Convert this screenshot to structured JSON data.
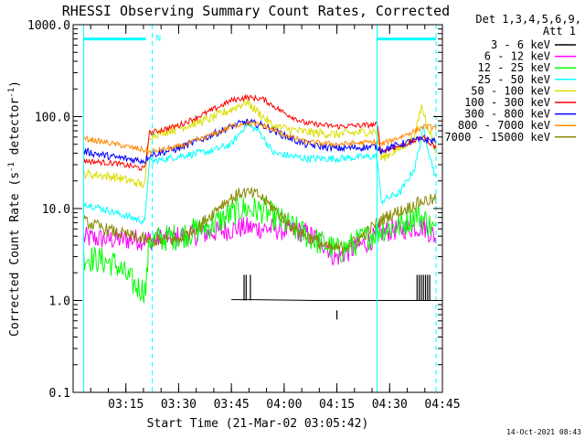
{
  "chart_data": {
    "type": "line",
    "title": "RHESSI Observing Summary Count Rates, Corrected",
    "xlabel": "Start Time (21-Mar-02 03:05:42)",
    "ylabel_main": "Corrected Count Rate (s",
    "ylabel_sup1": "-1",
    "ylabel_mid": " detector",
    "ylabel_sup2": "-1",
    "ylabel_end": ")",
    "yscale": "log",
    "ylim": [
      0.1,
      1000
    ],
    "xlim": [
      3.0,
      4.75
    ],
    "grid": false,
    "legend_position": "top-right",
    "footer_date": "14-Oct-2021 08:43",
    "legend_header": [
      "Det 1,3,4,5,6,9,",
      "Att 1"
    ],
    "yticks": [
      {
        "v": 1000,
        "label": "1000.0"
      },
      {
        "v": 100,
        "label": "100.0"
      },
      {
        "v": 10,
        "label": "10.0"
      },
      {
        "v": 1,
        "label": "1.0"
      },
      {
        "v": 0.1,
        "label": "0.1"
      }
    ],
    "xticks": [
      {
        "v": 3.25,
        "label": "03:15"
      },
      {
        "v": 3.5,
        "label": "03:30"
      },
      {
        "v": 3.75,
        "label": "03:45"
      },
      {
        "v": 4.0,
        "label": "04:00"
      },
      {
        "v": 4.25,
        "label": "04:15"
      },
      {
        "v": 4.5,
        "label": "04:30"
      },
      {
        "v": 4.75,
        "label": "04:45"
      }
    ],
    "annotation_flag": "N",
    "night_lines": [
      3.375,
      4.72
    ],
    "solid_lines": [
      3.05,
      4.44
    ],
    "att_bar": {
      "y": 700,
      "segments": [
        [
          3.05,
          3.345
        ],
        [
          4.44,
          4.72
        ]
      ]
    },
    "series": [
      {
        "name": "3 - 6 keV",
        "color": "#000000",
        "points": [
          [
            3.75,
            1.02
          ],
          [
            3.85,
            1.02
          ],
          [
            4.15,
            1.0
          ],
          [
            4.6,
            1.0
          ],
          [
            4.71,
            1.0
          ]
        ],
        "spikes": [
          [
            3.81,
            1.0,
            1.9
          ],
          [
            3.82,
            1.0,
            1.9
          ],
          [
            3.84,
            1.0,
            1.9
          ],
          [
            4.25,
            0.62,
            0.78
          ],
          [
            4.63,
            1.0,
            1.9
          ],
          [
            4.64,
            1.0,
            1.9
          ],
          [
            4.65,
            1.0,
            1.9
          ],
          [
            4.66,
            1.0,
            1.9
          ],
          [
            4.67,
            1.0,
            1.9
          ],
          [
            4.68,
            1.0,
            1.9
          ],
          [
            4.69,
            1.0,
            1.9
          ]
        ]
      },
      {
        "name": "6 - 12 keV",
        "color": "#ff00ff",
        "points": [
          [
            3.05,
            4.8
          ],
          [
            3.2,
            4.6
          ],
          [
            3.34,
            4.6
          ],
          [
            3.36,
            4.6
          ],
          [
            3.6,
            5.2
          ],
          [
            3.8,
            6.2
          ],
          [
            3.95,
            6.0
          ],
          [
            4.1,
            5.5
          ],
          [
            4.2,
            4.0
          ],
          [
            4.24,
            2.9
          ],
          [
            4.4,
            4.4
          ],
          [
            4.47,
            5.6
          ],
          [
            4.6,
            6.2
          ],
          [
            4.66,
            6.4
          ],
          [
            4.72,
            4.8
          ]
        ],
        "noise": 0.12
      },
      {
        "name": "12 - 25 keV",
        "color": "#00ff00",
        "points": [
          [
            3.05,
            3.0
          ],
          [
            3.2,
            2.5
          ],
          [
            3.3,
            1.4
          ],
          [
            3.345,
            1.3
          ],
          [
            3.36,
            4.5
          ],
          [
            3.5,
            5.0
          ],
          [
            3.65,
            6.5
          ],
          [
            3.8,
            10.0
          ],
          [
            3.9,
            9.5
          ],
          [
            4.05,
            6.0
          ],
          [
            4.15,
            4.5
          ],
          [
            4.2,
            4.0
          ],
          [
            4.26,
            3.4
          ],
          [
            4.4,
            5.0
          ],
          [
            4.47,
            6.0
          ],
          [
            4.55,
            6.5
          ],
          [
            4.63,
            8.8
          ],
          [
            4.68,
            7.0
          ],
          [
            4.72,
            5.5
          ]
        ],
        "noise": 0.15
      },
      {
        "name": "25 - 50 keV",
        "color": "#00ffff",
        "points": [
          [
            3.05,
            11.5
          ],
          [
            3.2,
            9.0
          ],
          [
            3.34,
            7.2
          ],
          [
            3.36,
            32
          ],
          [
            3.5,
            37
          ],
          [
            3.65,
            42
          ],
          [
            3.75,
            50
          ],
          [
            3.82,
            82
          ],
          [
            3.88,
            70
          ],
          [
            3.95,
            40
          ],
          [
            4.1,
            35
          ],
          [
            4.25,
            35
          ],
          [
            4.44,
            37
          ],
          [
            4.46,
            12
          ],
          [
            4.55,
            15
          ],
          [
            4.62,
            28
          ],
          [
            4.66,
            75
          ],
          [
            4.69,
            38
          ],
          [
            4.72,
            21
          ]
        ],
        "noise": 0.04
      },
      {
        "name": "50 - 100 keV",
        "color": "#dddd00",
        "points": [
          [
            3.05,
            24
          ],
          [
            3.2,
            22
          ],
          [
            3.34,
            18
          ],
          [
            3.36,
            62
          ],
          [
            3.5,
            75
          ],
          [
            3.65,
            95
          ],
          [
            3.75,
            120
          ],
          [
            3.82,
            145
          ],
          [
            3.88,
            110
          ],
          [
            3.95,
            78
          ],
          [
            4.1,
            68
          ],
          [
            4.25,
            64
          ],
          [
            4.44,
            70
          ],
          [
            4.46,
            35
          ],
          [
            4.55,
            45
          ],
          [
            4.62,
            60
          ],
          [
            4.65,
            130
          ],
          [
            4.69,
            70
          ],
          [
            4.72,
            40
          ]
        ],
        "noise": 0.05
      },
      {
        "name": "100 - 300 keV",
        "color": "#ff0000",
        "points": [
          [
            3.05,
            33
          ],
          [
            3.2,
            31
          ],
          [
            3.34,
            27
          ],
          [
            3.36,
            66
          ],
          [
            3.5,
            80
          ],
          [
            3.65,
            115
          ],
          [
            3.75,
            150
          ],
          [
            3.82,
            162
          ],
          [
            3.9,
            155
          ],
          [
            4.0,
            110
          ],
          [
            4.1,
            85
          ],
          [
            4.25,
            78
          ],
          [
            4.44,
            82
          ],
          [
            4.46,
            42
          ],
          [
            4.55,
            48
          ],
          [
            4.62,
            55
          ],
          [
            4.66,
            60
          ],
          [
            4.72,
            46
          ]
        ],
        "noise": 0.03
      },
      {
        "name": "300 - 800 keV",
        "color": "#0000ff",
        "points": [
          [
            3.05,
            42
          ],
          [
            3.2,
            36
          ],
          [
            3.34,
            33
          ],
          [
            3.36,
            38
          ],
          [
            3.5,
            45
          ],
          [
            3.65,
            62
          ],
          [
            3.75,
            78
          ],
          [
            3.82,
            88
          ],
          [
            3.9,
            80
          ],
          [
            4.0,
            62
          ],
          [
            4.1,
            50
          ],
          [
            4.25,
            45
          ],
          [
            4.44,
            47
          ],
          [
            4.46,
            43
          ],
          [
            4.55,
            50
          ],
          [
            4.62,
            55
          ],
          [
            4.66,
            56
          ],
          [
            4.72,
            55
          ]
        ],
        "noise": 0.04
      },
      {
        "name": "800 - 7000 keV",
        "color": "#ff8800",
        "points": [
          [
            3.05,
            58
          ],
          [
            3.2,
            50
          ],
          [
            3.34,
            43
          ],
          [
            3.36,
            41
          ],
          [
            3.5,
            47
          ],
          [
            3.65,
            62
          ],
          [
            3.75,
            78
          ],
          [
            3.82,
            86
          ],
          [
            3.9,
            80
          ],
          [
            4.0,
            64
          ],
          [
            4.1,
            53
          ],
          [
            4.25,
            50
          ],
          [
            4.44,
            53
          ],
          [
            4.46,
            50
          ],
          [
            4.55,
            60
          ],
          [
            4.62,
            70
          ],
          [
            4.66,
            78
          ],
          [
            4.72,
            76
          ]
        ],
        "noise": 0.03
      },
      {
        "name": "7000 - 15000 keV",
        "color": "#888800",
        "points": [
          [
            3.05,
            7.2
          ],
          [
            3.2,
            5.5
          ],
          [
            3.34,
            4.6
          ],
          [
            3.36,
            4.4
          ],
          [
            3.5,
            4.6
          ],
          [
            3.6,
            6.5
          ],
          [
            3.7,
            11
          ],
          [
            3.8,
            15
          ],
          [
            3.88,
            14
          ],
          [
            3.95,
            10
          ],
          [
            4.05,
            6.0
          ],
          [
            4.15,
            4.5
          ],
          [
            4.2,
            3.8
          ],
          [
            4.25,
            3.6
          ],
          [
            4.35,
            4.5
          ],
          [
            4.44,
            7.0
          ],
          [
            4.5,
            8.5
          ],
          [
            4.58,
            10
          ],
          [
            4.65,
            12
          ],
          [
            4.72,
            12.5
          ]
        ],
        "noise": 0.07
      }
    ]
  }
}
